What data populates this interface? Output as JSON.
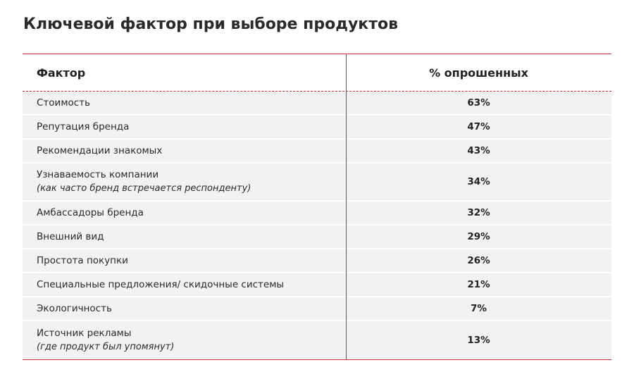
{
  "title": "Ключевой фактор при выборе продуктов",
  "table": {
    "headers": {
      "factor": "Фактор",
      "percent": "% опрошенных"
    },
    "rows": [
      {
        "factor": "Стоимость",
        "note": "",
        "value": "63%"
      },
      {
        "factor": "Репутация бренда",
        "note": "",
        "value": "47%"
      },
      {
        "factor": "Рекомендации знакомых",
        "note": "",
        "value": "43%"
      },
      {
        "factor": "Узнаваемость компании",
        "note": "(как часто бренд встречается респонденту)",
        "value": "34%"
      },
      {
        "factor": "Амбассадоры бренда",
        "note": "",
        "value": "32%"
      },
      {
        "factor": "Внешний вид",
        "note": "",
        "value": "29%"
      },
      {
        "factor": "Простота покупки",
        "note": "",
        "value": "26%"
      },
      {
        "factor": "Специальные предложения/ скидочные системы",
        "note": "",
        "value": "21%"
      },
      {
        "factor": "Экологичность",
        "note": "",
        "value": "7%"
      },
      {
        "factor": "Источник рекламы",
        "note": "(где продукт был упомянут)",
        "value": "13%"
      }
    ]
  },
  "colors": {
    "accent": "#d1263a",
    "row_bg": "#f2f2f2"
  }
}
